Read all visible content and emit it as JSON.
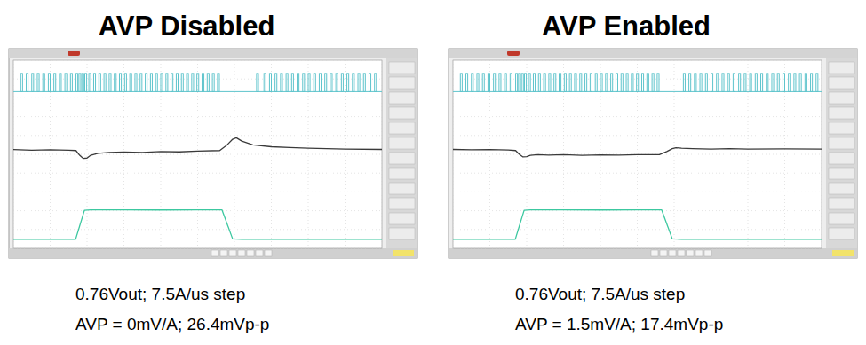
{
  "chart_data": [
    {
      "type": "line",
      "title": "AVP Disabled",
      "annotations": [
        "0.76Vout; 7.5A/us step",
        "AVP = 0mV/A; 26.4mVp-p"
      ],
      "xlim": [
        0,
        10
      ],
      "ylim": [
        0,
        10
      ],
      "xticks": [
        0,
        1,
        2,
        3,
        4,
        5,
        6,
        7,
        8,
        9,
        10
      ],
      "yticks": [
        0,
        1,
        2,
        3,
        4,
        5,
        6,
        7,
        8,
        9,
        10
      ],
      "grid": true,
      "tick_labels": false,
      "series": [
        {
          "type": "bar",
          "color": "#5ec4cc",
          "base": 8.33,
          "width": 0.05,
          "x": [
            0.2,
            0.35,
            0.5,
            0.65,
            0.8,
            0.95,
            1.1,
            1.25,
            1.4,
            1.55,
            1.7,
            1.78,
            1.86,
            1.94,
            2.05,
            2.18,
            2.32,
            2.46,
            2.6,
            2.74,
            2.88,
            3.02,
            3.16,
            3.3,
            3.44,
            3.58,
            3.72,
            3.86,
            4.0,
            4.14,
            4.28,
            4.42,
            4.56,
            4.7,
            4.84,
            4.98,
            5.12,
            5.26,
            5.4,
            5.54,
            6.6,
            6.8,
            6.95,
            7.1,
            7.25,
            7.4,
            7.55,
            7.7,
            7.85,
            8.0,
            8.15,
            8.3,
            8.45,
            8.6,
            8.75,
            8.9,
            9.05,
            9.2,
            9.35,
            9.5,
            9.65,
            9.8
          ],
          "values": [
            9.3,
            9.3,
            9.3,
            9.3,
            9.3,
            9.3,
            9.3,
            9.3,
            9.3,
            9.3,
            9.3,
            9.3,
            9.3,
            9.3,
            9.3,
            9.3,
            9.3,
            9.3,
            9.3,
            9.3,
            9.3,
            9.3,
            9.3,
            9.3,
            9.3,
            9.3,
            9.3,
            9.3,
            9.3,
            9.3,
            9.3,
            9.3,
            9.3,
            9.3,
            9.3,
            9.3,
            9.3,
            9.3,
            9.3,
            9.3,
            9.3,
            9.3,
            9.3,
            9.3,
            9.3,
            9.3,
            9.3,
            9.3,
            9.3,
            9.3,
            9.3,
            9.3,
            9.3,
            9.3,
            9.3,
            9.3,
            9.3,
            9.3,
            9.3,
            9.3,
            9.3,
            9.3
          ]
        },
        {
          "type": "line",
          "color": "#3a3a3a",
          "x": [
            0,
            0.5,
            1,
            1.5,
            1.7,
            1.8,
            1.9,
            2,
            2.1,
            2.3,
            2.6,
            3,
            3.5,
            4,
            4.5,
            5,
            5.6,
            5.8,
            5.95,
            6.05,
            6.2,
            6.5,
            7,
            7.5,
            8,
            9,
            10
          ],
          "values": [
            5.25,
            5.22,
            5.24,
            5.22,
            5.2,
            4.95,
            4.78,
            4.8,
            4.95,
            5.05,
            5.1,
            5.12,
            5.1,
            5.15,
            5.13,
            5.17,
            5.2,
            5.5,
            5.8,
            5.88,
            5.7,
            5.5,
            5.4,
            5.36,
            5.32,
            5.28,
            5.26
          ]
        },
        {
          "type": "line",
          "color": "#3cc8a0",
          "x": [
            0,
            1.69,
            1.93,
            2.1,
            3,
            4,
            5,
            5.66,
            5.95,
            6.2,
            8,
            10
          ],
          "values": [
            0.48,
            0.48,
            2.02,
            2.05,
            2.05,
            2.04,
            2.05,
            2.05,
            0.5,
            0.48,
            0.48,
            0.48
          ]
        }
      ]
    },
    {
      "type": "line",
      "title": "AVP Enabled",
      "annotations": [
        "0.76Vout; 7.5A/us step",
        "AVP = 1.5mV/A; 17.4mVp-p"
      ],
      "xlim": [
        0,
        10
      ],
      "ylim": [
        0,
        10
      ],
      "xticks": [
        0,
        1,
        2,
        3,
        4,
        5,
        6,
        7,
        8,
        9,
        10
      ],
      "yticks": [
        0,
        1,
        2,
        3,
        4,
        5,
        6,
        7,
        8,
        9,
        10
      ],
      "grid": true,
      "tick_labels": false,
      "series": [
        {
          "type": "bar",
          "color": "#5ec4cc",
          "base": 8.33,
          "width": 0.05,
          "x": [
            0.2,
            0.35,
            0.5,
            0.65,
            0.8,
            0.95,
            1.1,
            1.25,
            1.4,
            1.55,
            1.7,
            1.78,
            1.86,
            1.94,
            2.05,
            2.18,
            2.32,
            2.46,
            2.6,
            2.74,
            2.88,
            3.02,
            3.16,
            3.3,
            3.44,
            3.58,
            3.72,
            3.86,
            4.0,
            4.14,
            4.28,
            4.42,
            4.56,
            4.7,
            4.84,
            4.98,
            5.12,
            5.26,
            5.4,
            5.54,
            6.25,
            6.4,
            6.55,
            6.7,
            6.85,
            7.0,
            7.15,
            7.3,
            7.45,
            7.6,
            7.75,
            7.9,
            8.05,
            8.2,
            8.35,
            8.5,
            8.65,
            8.8,
            8.95,
            9.1,
            9.25,
            9.4,
            9.55,
            9.7,
            9.85
          ],
          "values": [
            9.3,
            9.3,
            9.3,
            9.3,
            9.3,
            9.3,
            9.3,
            9.3,
            9.3,
            9.3,
            9.3,
            9.3,
            9.3,
            9.3,
            9.3,
            9.3,
            9.3,
            9.3,
            9.3,
            9.3,
            9.3,
            9.3,
            9.3,
            9.3,
            9.3,
            9.3,
            9.3,
            9.3,
            9.3,
            9.3,
            9.3,
            9.3,
            9.3,
            9.3,
            9.3,
            9.3,
            9.3,
            9.3,
            9.3,
            9.3,
            9.3,
            9.3,
            9.3,
            9.3,
            9.3,
            9.3,
            9.3,
            9.3,
            9.3,
            9.3,
            9.3,
            9.3,
            9.3,
            9.3,
            9.3,
            9.3,
            9.3,
            9.3,
            9.3,
            9.3,
            9.3,
            9.3,
            9.3,
            9.3,
            9.3
          ]
        },
        {
          "type": "line",
          "color": "#3a3a3a",
          "x": [
            0,
            0.5,
            1,
            1.5,
            1.7,
            1.8,
            1.9,
            2,
            2.1,
            2.3,
            2.6,
            3,
            3.5,
            4,
            4.5,
            5,
            5.6,
            5.8,
            5.95,
            6.05,
            6.2,
            6.5,
            7,
            7.5,
            8,
            9,
            10
          ],
          "values": [
            5.26,
            5.24,
            5.25,
            5.23,
            5.2,
            5.0,
            4.86,
            4.88,
            4.95,
            4.98,
            4.96,
            4.98,
            4.95,
            4.97,
            4.96,
            4.98,
            4.98,
            5.15,
            5.3,
            5.35,
            5.32,
            5.3,
            5.28,
            5.3,
            5.28,
            5.29,
            5.28
          ]
        },
        {
          "type": "line",
          "color": "#3cc8a0",
          "x": [
            0,
            1.69,
            1.93,
            2.1,
            3,
            4,
            5,
            5.66,
            5.95,
            6.2,
            8,
            10
          ],
          "values": [
            0.48,
            0.48,
            2.02,
            2.05,
            2.05,
            2.04,
            2.05,
            2.05,
            0.5,
            0.48,
            0.48,
            0.48
          ]
        }
      ]
    }
  ]
}
